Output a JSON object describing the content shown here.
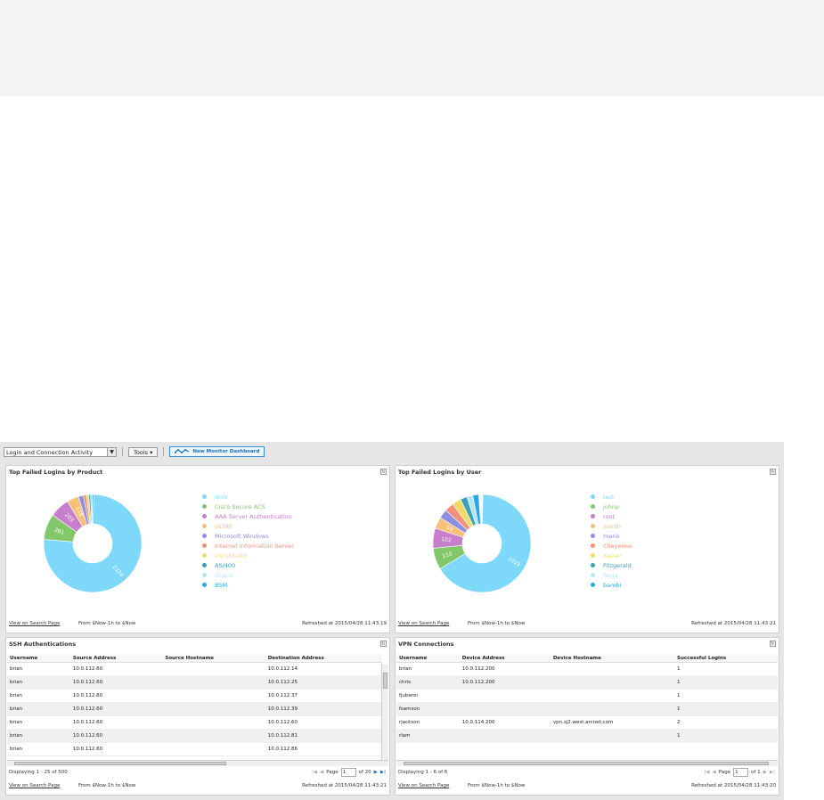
{
  "toolbar": {
    "dashboard_select": "Login and Connection Activity",
    "tools_label": "Tools ▾",
    "new_monitor_label": "New Monitor Dashboard"
  },
  "panels": {
    "product": {
      "title": "Top Failed Logins by Product",
      "legend": [
        {
          "label": "Unix",
          "color": "#7dd8fa"
        },
        {
          "label": "Cisco Secure ACS",
          "color": "#82c86a"
        },
        {
          "label": "AAA Server Authentication",
          "color": "#c77ecc"
        },
        {
          "label": "os390",
          "color": "#f6c078"
        },
        {
          "label": "Microsoft Windows",
          "color": "#8d8fe0"
        },
        {
          "label": "Internet Information Server",
          "color": "#f1917e"
        },
        {
          "label": "IntruShield",
          "color": "#eedc68"
        },
        {
          "label": "AS/400",
          "color": "#3a9fb8"
        },
        {
          "label": "Oracle",
          "color": "#b6e6f2"
        },
        {
          "label": "BSM",
          "color": "#28a8e6"
        }
      ],
      "slice_labels": [
        "2324",
        "261",
        "203",
        "118"
      ],
      "footer": {
        "link": "View on Search Page",
        "range": "From $Now-1h to $Now",
        "refreshed": "Refreshed at  2015/04/28 11:43:19"
      }
    },
    "user": {
      "title": "Top Failed Logins by User",
      "legend": [
        {
          "label": "test",
          "color": "#7dd8fa"
        },
        {
          "label": "johnp",
          "color": "#82c86a"
        },
        {
          "label": "root",
          "color": "#c77ecc"
        },
        {
          "label": "jsmith",
          "color": "#f6c078"
        },
        {
          "label": "mario",
          "color": "#8d8fe0"
        },
        {
          "label": "Cheyenne",
          "color": "#f1917e"
        },
        {
          "label": "Xavier",
          "color": "#eedc68"
        },
        {
          "label": "Fitzgerald",
          "color": "#3a9fb8"
        },
        {
          "label": "Rega",
          "color": "#b6e6f2"
        },
        {
          "label": "bambi",
          "color": "#28a8e6"
        }
      ],
      "slice_labels": [
        "1019",
        "110",
        "102",
        "58"
      ],
      "footer": {
        "link": "View on Search Page",
        "range": "From $Now-1h to $Now",
        "refreshed": "Refreshed at  2015/04/28 11:43:21"
      }
    },
    "ssh": {
      "title": "SSH Authentications",
      "columns": [
        "Username",
        "Source Address",
        "Source Hostname",
        "Destination Address"
      ],
      "rows": [
        [
          "brian",
          "10.0.112.60",
          "",
          "10.0.112.14"
        ],
        [
          "brian",
          "10.0.112.60",
          "",
          "10.0.112.25"
        ],
        [
          "brian",
          "10.0.112.60",
          "",
          "10.0.112.37"
        ],
        [
          "brian",
          "10.0.112.60",
          "",
          "10.0.112.39"
        ],
        [
          "brian",
          "10.0.112.60",
          "",
          "10.0.112.60"
        ],
        [
          "brian",
          "10.0.112.60",
          "",
          "10.0.112.81"
        ],
        [
          "brian",
          "10.0.112.60",
          "",
          "10.0.112.86"
        ]
      ],
      "displaying": "Displaying 1 - 25 of 500",
      "page_label": "Page",
      "page_value": "1",
      "page_of": "of 20",
      "footer": {
        "link": "View on Search Page",
        "range": "From $Now-1h to $Now",
        "refreshed": "Refreshed at  2015/04/28 11:43:21"
      }
    },
    "vpn": {
      "title": "VPN Connections",
      "columns": [
        "Username",
        "Device Address",
        "Device Hostname",
        "Successful Logins"
      ],
      "rows": [
        [
          "brian",
          "10.0.112.200",
          "",
          "1"
        ],
        [
          "chris",
          "10.0.112.200",
          "",
          "1"
        ],
        [
          "fjuberoi",
          "",
          "",
          "1"
        ],
        [
          "fsamson",
          "",
          "",
          "1"
        ],
        [
          "rjackson",
          "10.0.114.200",
          "vpn.sj2.west.arcnet.com",
          "2"
        ],
        [
          "rlam",
          "",
          "",
          "1"
        ]
      ],
      "displaying": "Displaying 1 - 6 of 6",
      "page_label": "Page",
      "page_value": "1",
      "page_of": "of 1",
      "footer": {
        "link": "View on Search Page",
        "range": "From $Now-1h to $Now",
        "refreshed": "Refreshed at  2015/04/28 11:43:20"
      }
    }
  }
}
